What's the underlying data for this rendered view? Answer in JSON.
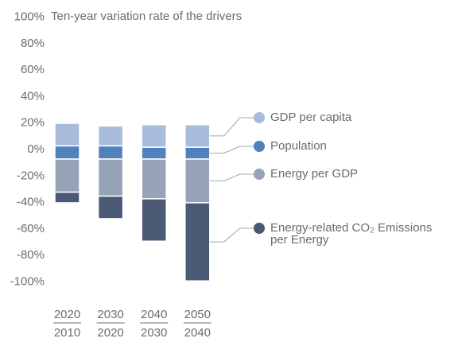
{
  "chart_data": {
    "type": "stacked-bar",
    "title": "Ten-year variation rate of the drivers",
    "categories": [
      [
        "2020",
        "2010"
      ],
      [
        "2030",
        "2020"
      ],
      [
        "2040",
        "2030"
      ],
      [
        "2050",
        "2040"
      ]
    ],
    "series": [
      {
        "name": "GDP per capita",
        "color": "#a9bcdc",
        "values": [
          17,
          15,
          17,
          17
        ]
      },
      {
        "name": "Population",
        "color": "#4f81bd",
        "values": [
          10,
          10,
          9,
          9
        ]
      },
      {
        "name": "Energy per GDP",
        "color": "#97a3b6",
        "values": [
          -25,
          -28,
          -30,
          -33
        ]
      },
      {
        "name": "Energy-related CO₂ Emissions per Energy",
        "color": "#4a5a75",
        "values": [
          -8,
          -17,
          -32,
          -59
        ]
      }
    ],
    "ylim": [
      -100,
      100
    ],
    "yticks": [
      {
        "value": 100,
        "label": "100%"
      },
      {
        "value": 80,
        "label": "80%"
      },
      {
        "value": 60,
        "label": "60%"
      },
      {
        "value": 40,
        "label": "40%"
      },
      {
        "value": 20,
        "label": "20%"
      },
      {
        "value": 0,
        "label": "0%"
      },
      {
        "value": -20,
        "label": "-20%"
      },
      {
        "value": -40,
        "label": "-40%"
      },
      {
        "value": -60,
        "label": "-60%"
      },
      {
        "value": -80,
        "label": "-80%"
      },
      {
        "value": -100,
        "label": "-100%"
      }
    ],
    "legend": "right"
  }
}
